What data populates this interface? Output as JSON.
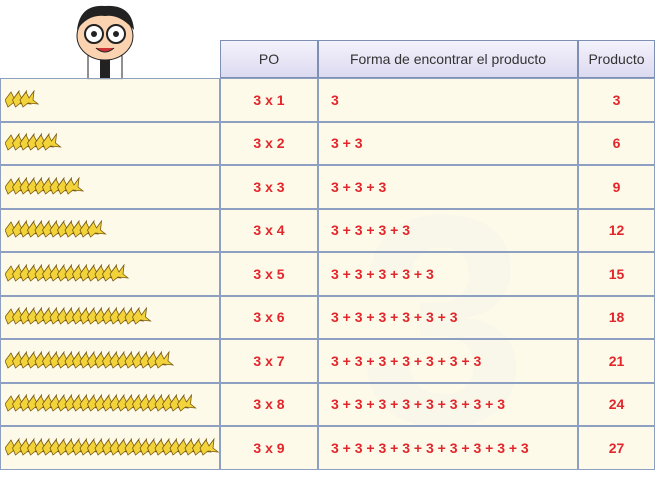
{
  "watermark": "3",
  "table": {
    "header": [
      "PO",
      "Forma de encontrar el producto",
      "Producto"
    ],
    "rows": [
      [
        "3 x 1",
        "3",
        "3"
      ],
      [
        "3 x 2",
        "3 + 3",
        "6"
      ],
      [
        "3 x 3",
        "3 + 3 + 3",
        "9"
      ],
      [
        "3 x 4",
        "3 + 3 + 3 + 3",
        "12"
      ],
      [
        "3 x 5",
        "3 + 3 + 3 + 3 + 3",
        "15"
      ],
      [
        "3 x 6",
        "3 + 3 + 3 + 3 + 3 + 3",
        "18"
      ],
      [
        "3 x 7",
        "3 + 3 + 3 + 3 + 3 + 3 + 3",
        "21"
      ],
      [
        "3 x 8",
        "3 + 3 + 3 + 3 + 3 + 3 + 3 + 3",
        "24"
      ],
      [
        "3 x 9",
        "3 + 3 + 3 + 3 + 3 + 3 + 3 + 3 + 3",
        "27"
      ]
    ]
  }
}
